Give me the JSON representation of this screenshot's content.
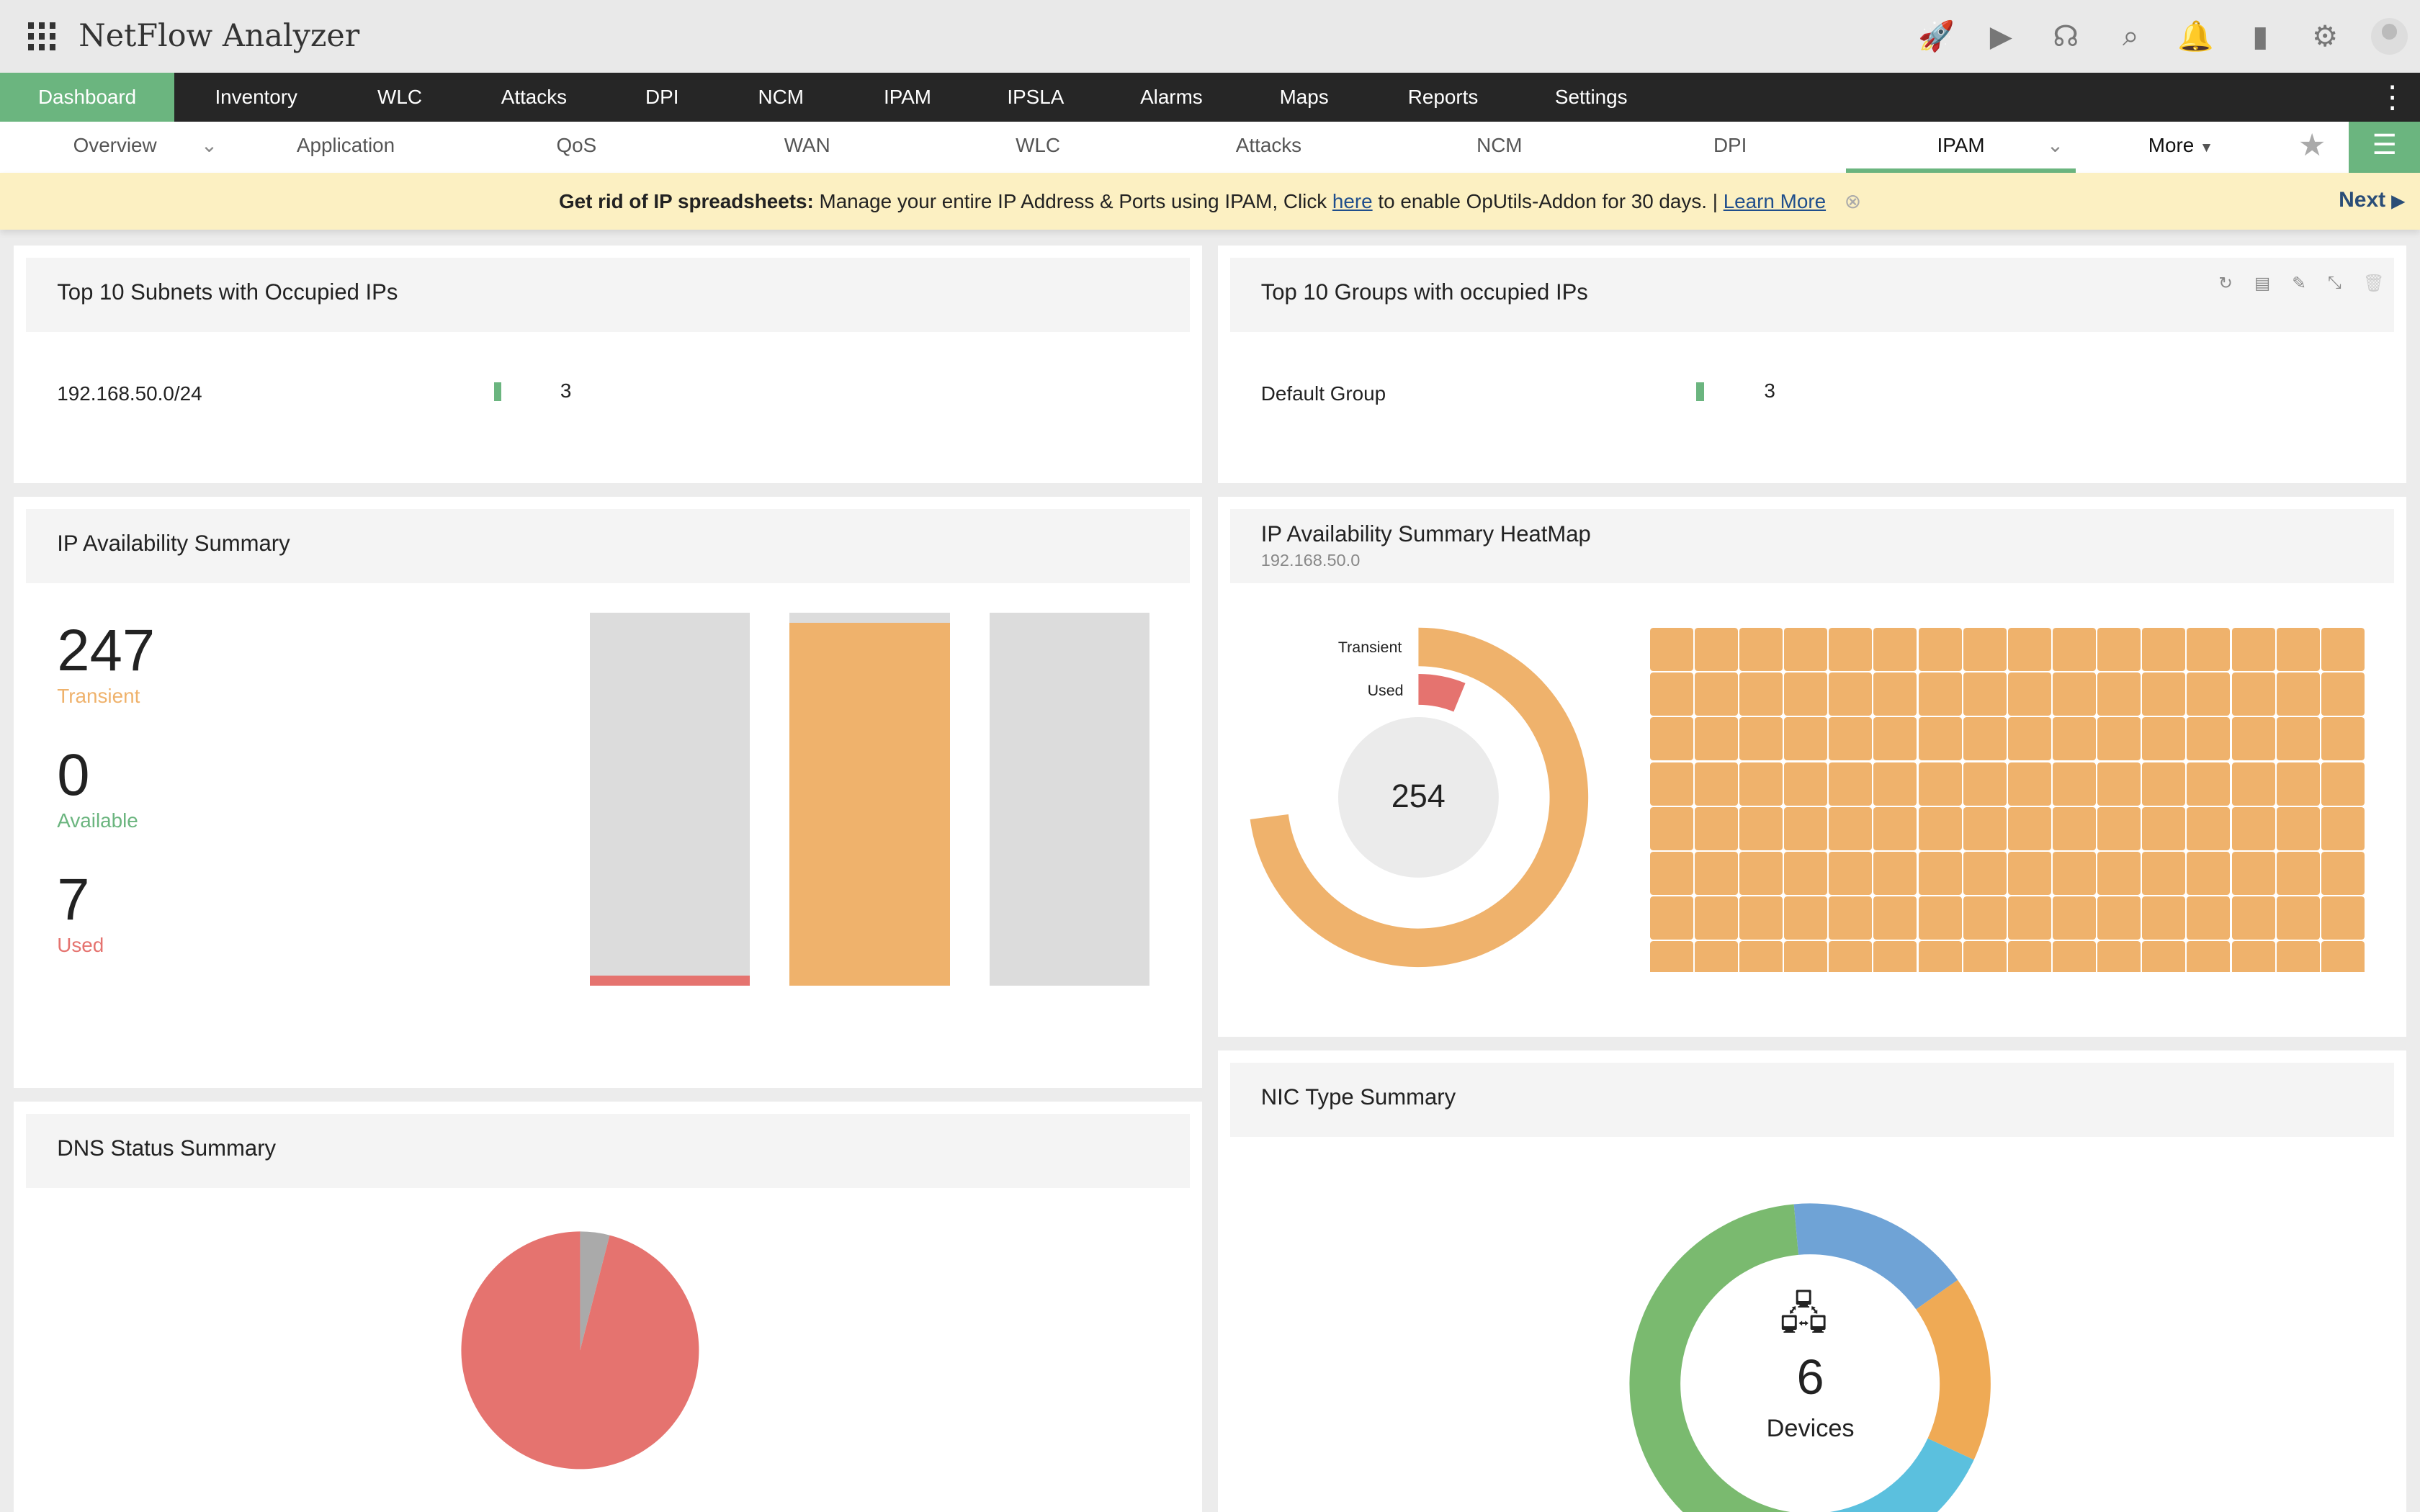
{
  "app": {
    "title": "NetFlow Analyzer"
  },
  "top_icons": [
    "rocket-icon",
    "presentation-icon",
    "headset-icon",
    "search-icon",
    "bell-icon",
    "devices-icon",
    "gear-icon",
    "user-avatar-icon"
  ],
  "main_nav": [
    "Dashboard",
    "Inventory",
    "WLC",
    "Attacks",
    "DPI",
    "NCM",
    "IPAM",
    "IPSLA",
    "Alarms",
    "Maps",
    "Reports",
    "Settings"
  ],
  "sub_nav": [
    "Overview",
    "Application",
    "QoS",
    "WAN",
    "WLC",
    "Attacks",
    "NCM",
    "DPI",
    "IPAM"
  ],
  "sub_nav_more": "More",
  "banner": {
    "bold": "Get rid of IP spreadsheets:",
    "text1": " Manage your entire IP Address & Ports using IPAM, Click ",
    "link1": "here",
    "text2": " to enable OpUtils-Addon for 30 days. | ",
    "link2": "Learn More",
    "next": "Next"
  },
  "colors": {
    "green": "#6bb57f",
    "orange": "#efb26c",
    "red": "#e5736f",
    "blue": "#6fa3d6",
    "cyan": "#5bc0de",
    "gray": "#dcdcdc"
  },
  "subnets": {
    "title": "Top 10 Subnets with Occupied IPs",
    "rows": [
      {
        "name": "192.168.50.0/24",
        "value": "3"
      }
    ]
  },
  "groups": {
    "title": "Top 10 Groups with occupied IPs",
    "rows": [
      {
        "name": "Default Group",
        "value": "3"
      }
    ]
  },
  "availability": {
    "title": "IP Availability Summary",
    "stats": [
      {
        "value": "247",
        "label": "Transient"
      },
      {
        "value": "0",
        "label": "Available"
      },
      {
        "value": "7",
        "label": "Used"
      }
    ],
    "total": 254
  },
  "heatmap": {
    "title": "IP Availability Summary HeatMap",
    "subnet": "192.168.50.0",
    "total": "254",
    "labels": {
      "transient": "Transient",
      "used": "Used"
    },
    "transient": 247,
    "used": 7
  },
  "dns": {
    "title": "DNS Status Summary",
    "slices": [
      {
        "value": 96,
        "color": "#e5736f"
      },
      {
        "value": 4,
        "color": "#aaaaaa"
      }
    ]
  },
  "nic": {
    "title": "NIC Type Summary",
    "count": "6",
    "label": "Devices",
    "slices": [
      {
        "value": 1,
        "color": "#6fa3d6"
      },
      {
        "value": 1,
        "color": "#efaa55"
      },
      {
        "value": 1,
        "color": "#5bc0de"
      },
      {
        "value": 3,
        "color": "#7aba6f"
      }
    ]
  }
}
